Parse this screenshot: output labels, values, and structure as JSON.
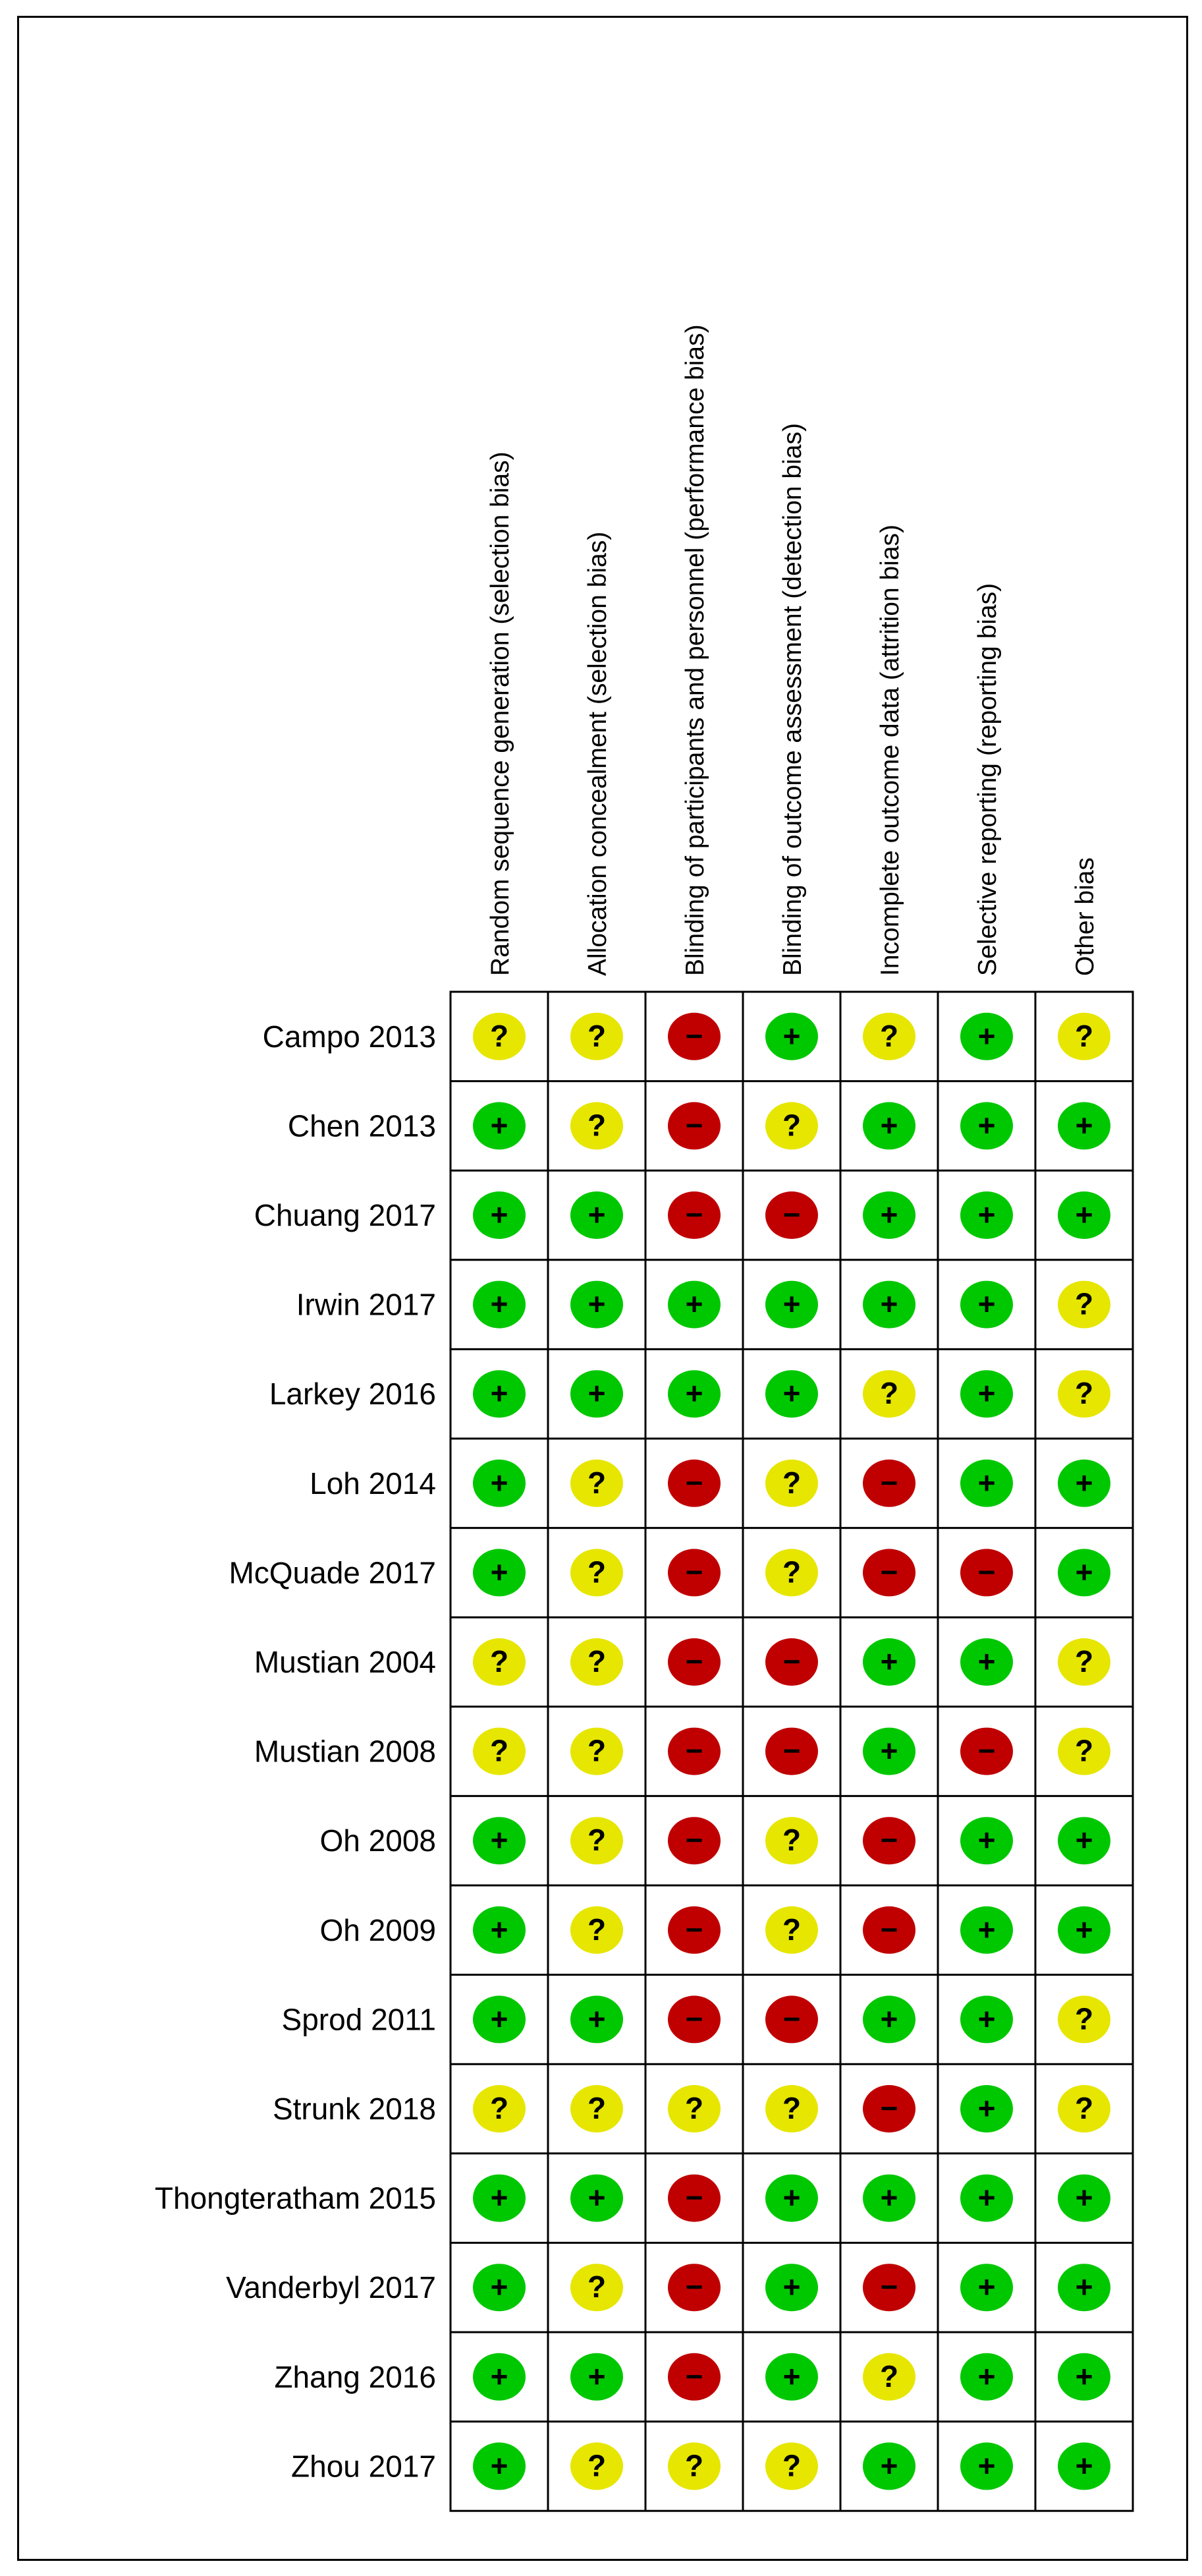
{
  "chart_data": {
    "type": "table",
    "columns": [
      "Random sequence generation (selection bias)",
      "Allocation concealment (selection bias)",
      "Blinding of participants and personnel (performance bias)",
      "Blinding of outcome assessment (detection bias)",
      "Incomplete outcome data (attrition bias)",
      "Selective reporting (reporting bias)",
      "Other bias"
    ],
    "rows": [
      {
        "study": "Campo 2013",
        "ratings": [
          "?",
          "?",
          "-",
          "+",
          "?",
          "+",
          "?"
        ]
      },
      {
        "study": "Chen 2013",
        "ratings": [
          "+",
          "?",
          "-",
          "?",
          "+",
          "+",
          "+"
        ]
      },
      {
        "study": "Chuang 2017",
        "ratings": [
          "+",
          "+",
          "-",
          "-",
          "+",
          "+",
          "+"
        ]
      },
      {
        "study": "Irwin 2017",
        "ratings": [
          "+",
          "+",
          "+",
          "+",
          "+",
          "+",
          "?"
        ]
      },
      {
        "study": "Larkey 2016",
        "ratings": [
          "+",
          "+",
          "+",
          "+",
          "?",
          "+",
          "?"
        ]
      },
      {
        "study": "Loh 2014",
        "ratings": [
          "+",
          "?",
          "-",
          "?",
          "-",
          "+",
          "+"
        ]
      },
      {
        "study": "McQuade 2017",
        "ratings": [
          "+",
          "?",
          "-",
          "?",
          "-",
          "-",
          "+"
        ]
      },
      {
        "study": "Mustian 2004",
        "ratings": [
          "?",
          "?",
          "-",
          "-",
          "+",
          "+",
          "?"
        ]
      },
      {
        "study": "Mustian 2008",
        "ratings": [
          "?",
          "?",
          "-",
          "-",
          "+",
          "-",
          "?"
        ]
      },
      {
        "study": "Oh 2008",
        "ratings": [
          "+",
          "?",
          "-",
          "?",
          "-",
          "+",
          "+"
        ]
      },
      {
        "study": "Oh 2009",
        "ratings": [
          "+",
          "?",
          "-",
          "?",
          "-",
          "+",
          "+"
        ]
      },
      {
        "study": "Sprod 2011",
        "ratings": [
          "+",
          "+",
          "-",
          "-",
          "+",
          "+",
          "?"
        ]
      },
      {
        "study": "Strunk 2018",
        "ratings": [
          "?",
          "?",
          "?",
          "?",
          "-",
          "+",
          "?"
        ]
      },
      {
        "study": "Thongteratham 2015",
        "ratings": [
          "+",
          "+",
          "-",
          "+",
          "+",
          "+",
          "+"
        ]
      },
      {
        "study": "Vanderbyl 2017",
        "ratings": [
          "+",
          "?",
          "-",
          "+",
          "-",
          "+",
          "+"
        ]
      },
      {
        "study": "Zhang 2016",
        "ratings": [
          "+",
          "+",
          "-",
          "+",
          "?",
          "+",
          "+"
        ]
      },
      {
        "study": "Zhou 2017",
        "ratings": [
          "+",
          "?",
          "?",
          "?",
          "+",
          "+",
          "+"
        ]
      }
    ],
    "rating_colors": {
      "+": "#00c800",
      "?": "#e6e600",
      "-": "#c00000"
    }
  }
}
